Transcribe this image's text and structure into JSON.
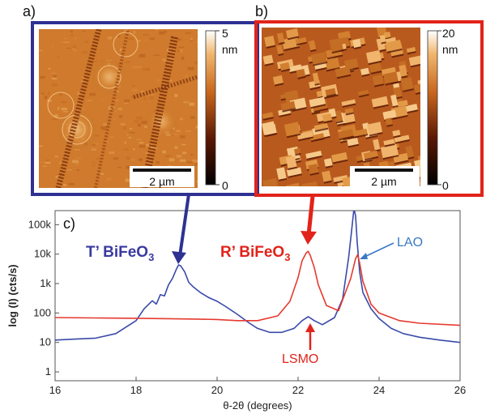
{
  "panels": {
    "a": {
      "letter": "a)",
      "frame_color": "#2e3192",
      "scalebar_label": "2 µm",
      "colorbar_max": "5",
      "colorbar_unit": "nm",
      "colorbar_min": "0"
    },
    "b": {
      "letter": "b)",
      "frame_color": "#e2231a",
      "scalebar_label": "2 µm",
      "colorbar_max": "20",
      "colorbar_unit": "nm",
      "colorbar_min": "0"
    },
    "c": {
      "letter": "c)",
      "annotations": {
        "t_prime_prefix": "T’ BiFeO",
        "r_prime_prefix": "R’ BiFeO",
        "subscript": "3",
        "lao": "LAO",
        "lsmo": "LSMO"
      }
    }
  },
  "chart_data": {
    "type": "line",
    "title": "",
    "xlabel": "θ-2θ (degrees)",
    "ylabel": "log (I) (cts/s)",
    "xlim": [
      16,
      26
    ],
    "ylim": [
      0.5,
      300000
    ],
    "yscale": "log",
    "x_ticks": [
      16,
      18,
      20,
      22,
      24,
      26
    ],
    "y_ticks": [
      {
        "value": 1,
        "label": "1"
      },
      {
        "value": 10,
        "label": "10"
      },
      {
        "value": 100,
        "label": "100"
      },
      {
        "value": 1000,
        "label": "1k"
      },
      {
        "value": 10000,
        "label": "10k"
      },
      {
        "value": 100000,
        "label": "100k"
      }
    ],
    "grid": false,
    "series": [
      {
        "color": "#3a4aa8",
        "x": [
          16.0,
          16.5,
          17.0,
          17.5,
          18.0,
          18.2,
          18.4,
          18.5,
          18.6,
          18.7,
          18.8,
          18.9,
          19.0,
          19.05,
          19.1,
          19.2,
          19.3,
          19.4,
          19.5,
          19.6,
          19.8,
          20.0,
          20.2,
          20.5,
          20.8,
          21.0,
          21.3,
          21.6,
          21.9,
          22.1,
          22.25,
          22.4,
          22.6,
          22.9,
          23.1,
          23.25,
          23.32,
          23.38,
          23.42,
          23.46,
          23.52,
          23.6,
          23.8,
          24.0,
          24.3,
          24.6,
          25.0,
          25.5,
          26.0
        ],
        "y": [
          12,
          13,
          14,
          20,
          55,
          140,
          260,
          200,
          420,
          380,
          900,
          1500,
          3200,
          4300,
          4000,
          2500,
          1100,
          800,
          620,
          480,
          330,
          250,
          170,
          90,
          45,
          30,
          22,
          22,
          30,
          55,
          75,
          55,
          40,
          70,
          300,
          8000,
          60000,
          350000,
          200000,
          25000,
          2500,
          500,
          140,
          65,
          30,
          20,
          15,
          12,
          10
        ]
      },
      {
        "color": "#e53a2f",
        "x": [
          16.0,
          17.0,
          18.0,
          18.8,
          19.5,
          20.0,
          20.5,
          21.0,
          21.5,
          21.8,
          22.0,
          22.1,
          22.2,
          22.25,
          22.3,
          22.4,
          22.5,
          22.7,
          23.0,
          23.3,
          23.42,
          23.47,
          23.52,
          23.6,
          23.8,
          24.0,
          24.5,
          25.0,
          26.0
        ],
        "y": [
          70,
          68,
          66,
          64,
          62,
          60,
          55,
          55,
          80,
          250,
          1600,
          6000,
          11000,
          12500,
          9000,
          3500,
          900,
          180,
          120,
          1500,
          7000,
          9500,
          5000,
          1200,
          200,
          100,
          55,
          45,
          38
        ]
      }
    ]
  }
}
